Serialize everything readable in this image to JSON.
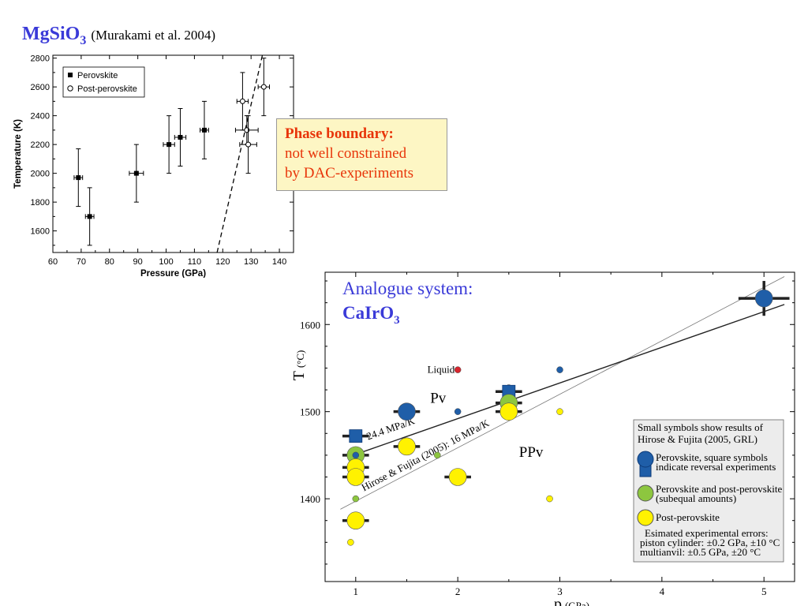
{
  "title_mgsio3": {
    "formula_main": "MgSiO",
    "formula_sub": "3",
    "citation": "(Murakami et al. 2004)"
  },
  "callout": {
    "heading": "Phase boundary:",
    "line1": "not well constrained",
    "line2": "by DAC-experiments"
  },
  "chart_data": [
    {
      "type": "scatter",
      "title": "",
      "xlabel": "Pressure (GPa)",
      "ylabel": "Temperature (K)",
      "xlim": [
        60,
        145
      ],
      "ylim": [
        1450,
        2820
      ],
      "xticks": [
        60,
        70,
        80,
        90,
        100,
        110,
        120,
        130,
        140
      ],
      "yticks": [
        1600,
        1800,
        2000,
        2200,
        2400,
        2600,
        2800
      ],
      "legend": {
        "position": "top-left",
        "entries": [
          "Perovskite",
          "Post-perovskite"
        ]
      },
      "series": [
        {
          "name": "Perovskite",
          "marker": "filled-square",
          "points": [
            {
              "x": 69,
              "y": 1970,
              "xerr": 1.5,
              "yerr": 200
            },
            {
              "x": 73,
              "y": 1700,
              "xerr": 1.5,
              "yerr": 200
            },
            {
              "x": 89.5,
              "y": 2000,
              "xerr": 2.5,
              "yerr": 200
            },
            {
              "x": 101,
              "y": 2200,
              "xerr": 2,
              "yerr": 200
            },
            {
              "x": 105,
              "y": 2250,
              "xerr": 2,
              "yerr": 200
            },
            {
              "x": 113.5,
              "y": 2300,
              "xerr": 1.5,
              "yerr": 200
            }
          ]
        },
        {
          "name": "Post-perovskite",
          "marker": "open-circle",
          "points": [
            {
              "x": 127,
              "y": 2500,
              "xerr": 2,
              "yerr": 200
            },
            {
              "x": 128.5,
              "y": 2300,
              "xerr": 4,
              "yerr": 100
            },
            {
              "x": 129,
              "y": 2200,
              "xerr": 3,
              "yerr": 200
            },
            {
              "x": 134.5,
              "y": 2600,
              "xerr": 2,
              "yerr": 200
            }
          ]
        }
      ],
      "boundary_line": {
        "style": "dashed",
        "from": {
          "x": 118,
          "y": 1450
        },
        "to": {
          "x": 134,
          "y": 2820
        }
      }
    },
    {
      "type": "scatter",
      "title": "Analogue system:",
      "subtitle": {
        "main": "CaIrO",
        "sub": "3"
      },
      "xlabel_main": "p",
      "xlabel_unit": "(GPa)",
      "ylabel_main": "T",
      "ylabel_unit": "(°C)",
      "xlim": [
        0.7,
        5.3
      ],
      "ylim": [
        1305,
        1660
      ],
      "xticks": [
        1,
        2,
        3,
        4,
        5
      ],
      "yticks": [
        1400,
        1500,
        1600
      ],
      "colors": {
        "perovskite": "#1f5ea8",
        "mixed": "#8dc63f",
        "post_perovskite": "#fff200",
        "liquid": "#d7262e"
      },
      "region_labels": [
        "Pv",
        "PPv"
      ],
      "liquid_label": "Liquid",
      "lines": [
        {
          "label": "24.4 MPa/K",
          "from": {
            "x": 1.0,
            "y": 1451
          },
          "to": {
            "x": 5.2,
            "y": 1623
          },
          "style": "solid-dark"
        },
        {
          "label": "Hirose & Fujita (2005): 16 MPa/K",
          "from": {
            "x": 0.85,
            "y": 1388
          },
          "to": {
            "x": 5.2,
            "y": 1655
          },
          "style": "thin-gray"
        }
      ],
      "points": [
        {
          "x": 1.0,
          "y": 1472,
          "phase": "perovskite",
          "shape": "square",
          "size": "large",
          "xerr": 0.13
        },
        {
          "x": 1.0,
          "y": 1450,
          "phase": "mixed",
          "shape": "circle",
          "size": "large",
          "xerr": 0.13
        },
        {
          "x": 1.0,
          "y": 1450,
          "phase": "perovskite",
          "shape": "circle",
          "size": "small"
        },
        {
          "x": 1.0,
          "y": 1436,
          "phase": "post_perovskite",
          "shape": "circle",
          "size": "large",
          "xerr": 0.13
        },
        {
          "x": 1.0,
          "y": 1425,
          "phase": "post_perovskite",
          "shape": "circle",
          "size": "large",
          "xerr": 0.13
        },
        {
          "x": 1.0,
          "y": 1400,
          "phase": "mixed",
          "shape": "circle",
          "size": "small"
        },
        {
          "x": 1.0,
          "y": 1375,
          "phase": "post_perovskite",
          "shape": "circle",
          "size": "large",
          "xerr": 0.13
        },
        {
          "x": 0.95,
          "y": 1350,
          "phase": "post_perovskite",
          "shape": "circle",
          "size": "small"
        },
        {
          "x": 1.5,
          "y": 1500,
          "phase": "perovskite",
          "shape": "circle",
          "size": "large",
          "xerr": 0.13
        },
        {
          "x": 1.5,
          "y": 1460,
          "phase": "post_perovskite",
          "shape": "circle",
          "size": "large",
          "xerr": 0.13
        },
        {
          "x": 1.8,
          "y": 1450,
          "phase": "mixed",
          "shape": "circle",
          "size": "small"
        },
        {
          "x": 2.0,
          "y": 1548,
          "phase": "liquid",
          "shape": "circle",
          "size": "small"
        },
        {
          "x": 2.0,
          "y": 1500,
          "phase": "perovskite",
          "shape": "circle",
          "size": "small"
        },
        {
          "x": 2.0,
          "y": 1425,
          "phase": "post_perovskite",
          "shape": "circle",
          "size": "large",
          "xerr": 0.13
        },
        {
          "x": 2.5,
          "y": 1523,
          "phase": "perovskite",
          "shape": "square",
          "size": "large",
          "xerr": 0.13,
          "yerr": 8
        },
        {
          "x": 2.5,
          "y": 1510,
          "phase": "mixed",
          "shape": "circle",
          "size": "large",
          "xerr": 0.13
        },
        {
          "x": 2.5,
          "y": 1500,
          "phase": "post_perovskite",
          "shape": "circle",
          "size": "large",
          "xerr": 0.13
        },
        {
          "x": 2.9,
          "y": 1400,
          "phase": "post_perovskite",
          "shape": "circle",
          "size": "small"
        },
        {
          "x": 3.0,
          "y": 1548,
          "phase": "perovskite",
          "shape": "circle",
          "size": "small"
        },
        {
          "x": 3.0,
          "y": 1500,
          "phase": "post_perovskite",
          "shape": "circle",
          "size": "small"
        },
        {
          "x": 5.0,
          "y": 1630,
          "phase": "perovskite",
          "shape": "circle",
          "size": "large",
          "xerr": 0.25,
          "yerr": 20
        }
      ],
      "legend": {
        "position": "bottom-right",
        "header_line1": "Small symbols show results of",
        "header_line2": "Hirose & Fujita (2005, GRL)",
        "entries": [
          {
            "phase": "perovskite",
            "line1": "Perovskite, square symbols",
            "line2": "indicate reversal experiments"
          },
          {
            "phase": "mixed",
            "line1": "Perovskite and post-perovskite",
            "line2": "(subequal amounts)"
          },
          {
            "phase": "post_perovskite",
            "line1": "Post-perovskite",
            "line2": ""
          }
        ],
        "errors_line1": "Esimated experimental errors:",
        "errors_line2": "piston cylinder: ±0.2 GPa, ±10 °C",
        "errors_line3": "multianvil: ±0.5 GPa, ±20 °C"
      }
    }
  ]
}
